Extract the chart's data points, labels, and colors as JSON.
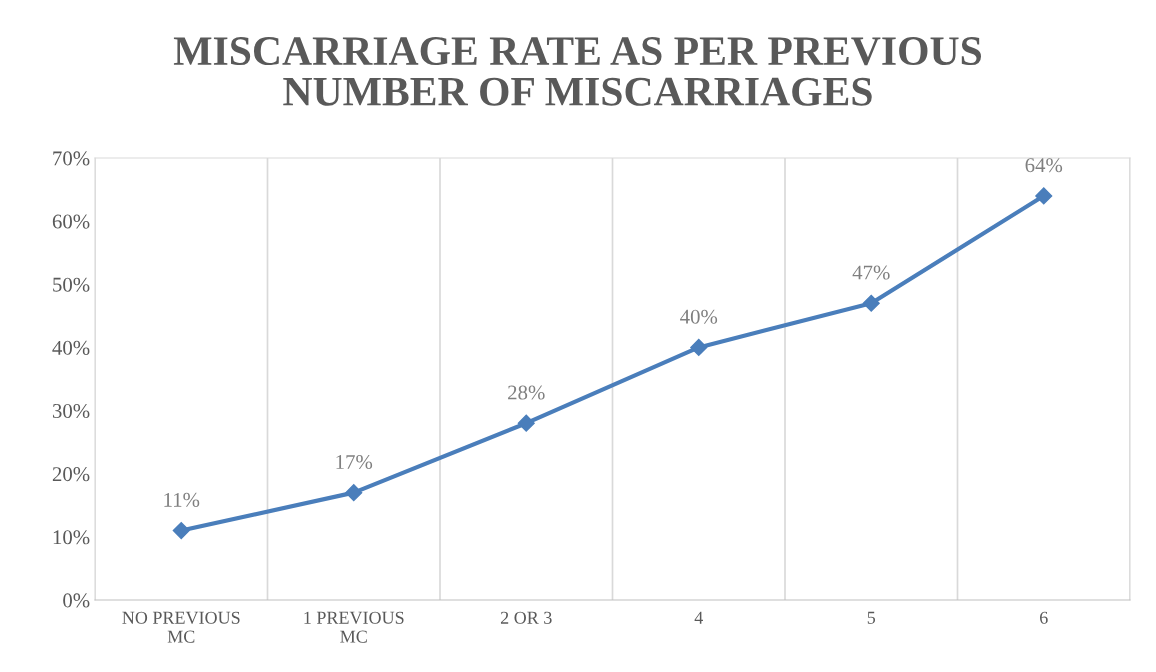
{
  "chart_data": {
    "type": "line",
    "title": "MISCARRIAGE RATE AS PER PREVIOUS\nNUMBER OF MISCARRIAGES",
    "categories": [
      "NO PREVIOUS\nMC",
      "1 PREVIOUS\nMC",
      "2 OR 3",
      "4",
      "5",
      "6"
    ],
    "series": [
      {
        "color": "#4a7ebb",
        "values": [
          11,
          17,
          28,
          40,
          47,
          64
        ],
        "value_labels": [
          "11%",
          "17%",
          "28%",
          "40%",
          "47%",
          "64%"
        ]
      }
    ],
    "ylim": [
      0,
      70
    ],
    "yticks": [
      {
        "value": 0,
        "label": "0%"
      },
      {
        "value": 10,
        "label": "10%"
      },
      {
        "value": 20,
        "label": "20%"
      },
      {
        "value": 30,
        "label": "30%"
      },
      {
        "value": 40,
        "label": "40%"
      },
      {
        "value": 50,
        "label": "50%"
      },
      {
        "value": 60,
        "label": "60%"
      },
      {
        "value": 70,
        "label": "70%"
      }
    ],
    "grid": "x",
    "marker": "diamond",
    "line_style": "solid"
  }
}
